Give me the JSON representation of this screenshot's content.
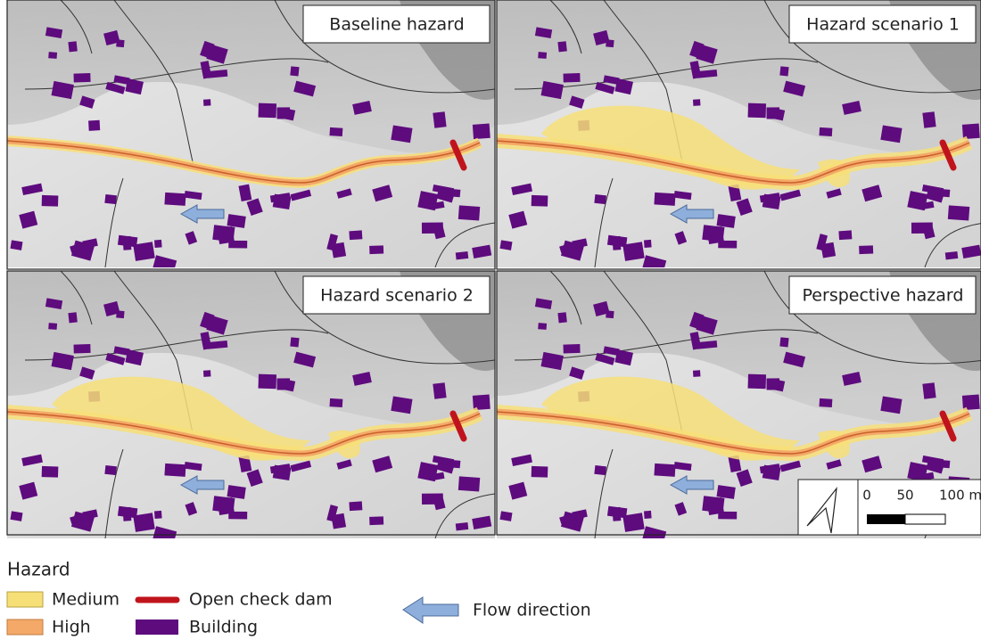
{
  "panels": [
    {
      "title": "Baseline hazard"
    },
    {
      "title": "Hazard scenario 1"
    },
    {
      "title": "Hazard scenario 2"
    },
    {
      "title": "Perspective hazard"
    }
  ],
  "scale": {
    "labels": [
      "0",
      "50",
      "100 m"
    ]
  },
  "legend": {
    "title": "Hazard",
    "items": [
      {
        "label": "Medium",
        "color": "#f7df78"
      },
      {
        "label": "High",
        "color": "#f4a968"
      },
      {
        "label": "Open check dam",
        "color": "#c0141c"
      },
      {
        "label": "Building",
        "color": "#5e0b7e"
      }
    ],
    "flow": {
      "label": "Flow direction",
      "color": "#8eaedb"
    }
  }
}
